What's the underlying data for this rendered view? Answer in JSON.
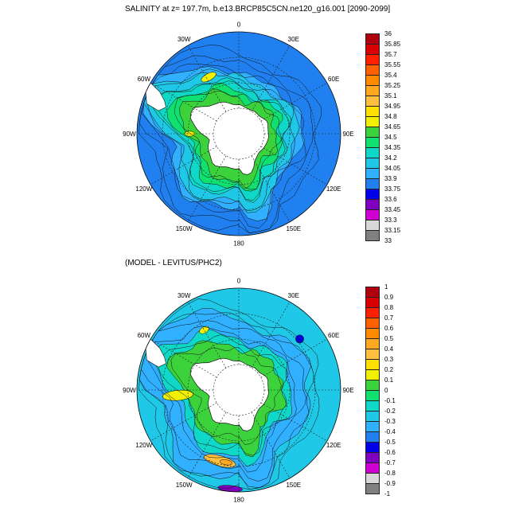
{
  "panels": [
    {
      "title": "SALINITY at z= 197.7m, b.e13.BRCP85C5CN.ne120_g16.001 [2090-2099]",
      "colorbar": {
        "labels": [
          "36",
          "35.85",
          "35.7",
          "35.55",
          "35.4",
          "35.25",
          "35.1",
          "34.95",
          "34.8",
          "34.65",
          "34.5",
          "34.35",
          "34.2",
          "34.05",
          "33.9",
          "33.75",
          "33.6",
          "33.45",
          "33.3",
          "33.15",
          "33"
        ],
        "colors": [
          "#b00010",
          "#d80000",
          "#ff2000",
          "#ff6000",
          "#ff8c00",
          "#ffa820",
          "#ffc040",
          "#ffe000",
          "#f0f000",
          "#3cd23c",
          "#10e070",
          "#10d8c8",
          "#20c8e8",
          "#30b0ff",
          "#2080f0",
          "#0000e8",
          "#8000c0",
          "#d000d0",
          "#d8d8d8",
          "#808080"
        ]
      },
      "ring_color": "#2080f0",
      "zones": [
        {
          "color": "#30b0ff",
          "r": [
            0.72,
            0.78
          ]
        },
        {
          "color": "#20c8e8",
          "r": [
            0.62,
            0.72
          ]
        },
        {
          "color": "#10d8c8",
          "r": [
            0.54,
            0.62
          ]
        },
        {
          "color": "#10e070",
          "r": [
            0.47,
            0.54
          ]
        },
        {
          "color": "#3cd23c",
          "r": [
            0.38,
            0.47
          ]
        }
      ],
      "blobs": [
        {
          "lon": -28,
          "r": 0.63,
          "rx": 0.08,
          "ry": 0.035,
          "color": "#f0f000"
        },
        {
          "lon": -90,
          "r": 0.48,
          "rx": 0.025,
          "ry": 0.05,
          "color": "#f0f000"
        }
      ]
    },
    {
      "title": "(MODEL - LEVITUS/PHC2)",
      "colorbar": {
        "labels": [
          "1",
          "0.9",
          "0.8",
          "0.7",
          "0.6",
          "0.5",
          "0.4",
          "0.3",
          "0.2",
          "0.1",
          "0",
          "-0.1",
          "-0.2",
          "-0.3",
          "-0.4",
          "-0.5",
          "-0.6",
          "-0.7",
          "-0.8",
          "-0.9",
          "-1"
        ],
        "colors": [
          "#b00010",
          "#d80000",
          "#ff2000",
          "#ff6000",
          "#ff8c00",
          "#ffa820",
          "#ffc040",
          "#ffe000",
          "#f0f000",
          "#3cd23c",
          "#10e070",
          "#10d8c8",
          "#20c8e8",
          "#30b0ff",
          "#2080f0",
          "#0000e8",
          "#8000c0",
          "#d000d0",
          "#d8d8d8",
          "#808080"
        ]
      },
      "ring_color": "#20c8e8",
      "zones": [
        {
          "color": "#30b0ff",
          "r": [
            0.66,
            0.9
          ]
        },
        {
          "color": "#10d8c8",
          "r": [
            0.55,
            0.66
          ]
        },
        {
          "color": "#3cd23c",
          "r": [
            0.45,
            0.55
          ]
        }
      ],
      "blobs": [
        {
          "lon": -95,
          "r": 0.6,
          "rx": 0.05,
          "ry": 0.15,
          "color": "#f0f000"
        },
        {
          "lon": -165,
          "r": 0.72,
          "rx": 0.16,
          "ry": 0.05,
          "color": "#ffc040"
        },
        {
          "lon": -170,
          "r": 0.72,
          "rx": 0.06,
          "ry": 0.025,
          "color": "#ffa820"
        },
        {
          "lon": -30,
          "r": 0.68,
          "rx": 0.05,
          "ry": 0.03,
          "color": "#f0f000"
        },
        {
          "lon": 50,
          "r": 0.78,
          "rx": 0.04,
          "ry": 0.04,
          "color": "#0000e8"
        },
        {
          "lon": -175,
          "r": 0.97,
          "rx": 0.12,
          "ry": 0.03,
          "color": "#8000c0"
        }
      ]
    }
  ],
  "lon_labels": [
    "0",
    "30E",
    "60E",
    "90E",
    "120E",
    "150E",
    "180",
    "150W",
    "120W",
    "90W",
    "60W",
    "30W"
  ]
}
